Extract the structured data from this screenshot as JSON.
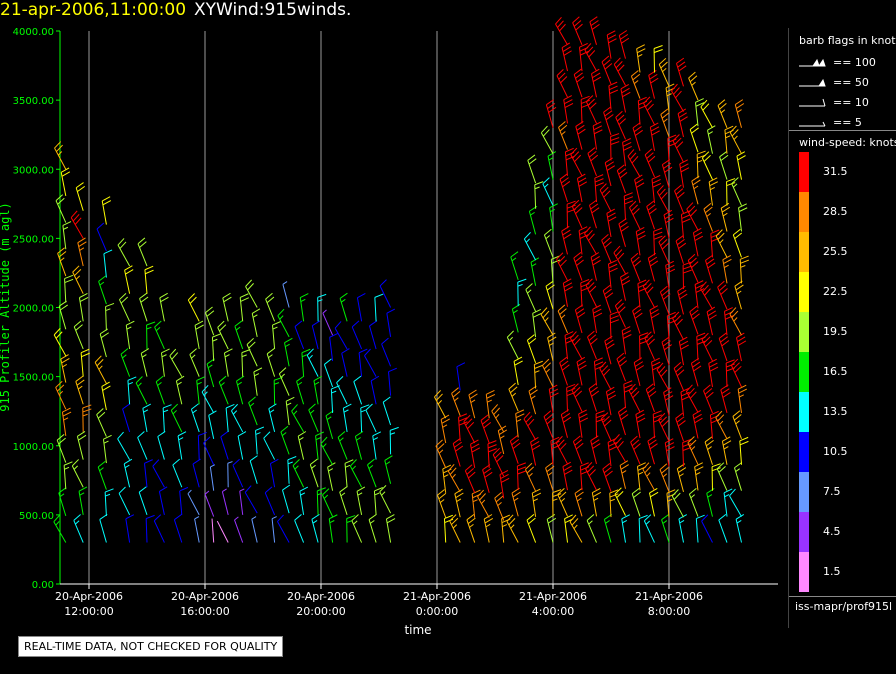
{
  "header": {
    "timestamp": "21-apr-2006,11:00:00",
    "product": "XYWind:915winds."
  },
  "legend": {
    "barb_title": "barb flags in knots",
    "barb_flags": [
      {
        "label": "== 100",
        "knots": 100
      },
      {
        "label": "== 50",
        "knots": 50
      },
      {
        "label": "== 10",
        "knots": 10
      },
      {
        "label": "== 5",
        "knots": 5
      }
    ],
    "speed_title": "wind-speed: knots",
    "speed_scale": [
      {
        "label": "31.5",
        "color": "#ff0000"
      },
      {
        "label": "28.5",
        "color": "#ff8800"
      },
      {
        "label": "25.5",
        "color": "#ffbb00"
      },
      {
        "label": "22.5",
        "color": "#ffff00"
      },
      {
        "label": "19.5",
        "color": "#aaff33"
      },
      {
        "label": "16.5",
        "color": "#00ee00"
      },
      {
        "label": "13.5",
        "color": "#00ffff"
      },
      {
        "label": "10.5",
        "color": "#0000ff"
      },
      {
        "label": "7.5",
        "color": "#6699ff"
      },
      {
        "label": "4.5",
        "color": "#9933ff"
      },
      {
        "label": "1.5",
        "color": "#ff88ff"
      }
    ]
  },
  "source": "iss-mapr/prof915l",
  "notice": "REAL-TIME DATA, NOT CHECKED FOR QUALITY",
  "chart_data": {
    "type": "wind-barb time-height",
    "ylabel": "915 Profiler Altitude (m agl)",
    "xlabel": "time",
    "ylim": [
      0,
      4000
    ],
    "yticks": [
      "0.00",
      "500.00",
      "1000.00",
      "1500.00",
      "2000.00",
      "2500.00",
      "3000.00",
      "3500.00",
      "4000.00"
    ],
    "xlim": [
      "20-Apr-2006 11:00",
      "21-Apr-2006 11:00"
    ],
    "xticks": [
      {
        "date": "20-Apr-2006",
        "time": "12:00:00",
        "hour": 1
      },
      {
        "date": "20-Apr-2006",
        "time": "16:00:00",
        "hour": 5
      },
      {
        "date": "20-Apr-2006",
        "time": "20:00:00",
        "hour": 9
      },
      {
        "date": "21-Apr-2006",
        "time": "0:00:00",
        "hour": 13
      },
      {
        "date": "21-Apr-2006",
        "time": "4:00:00",
        "hour": 17
      },
      {
        "date": "21-Apr-2006",
        "time": "8:00:00",
        "hour": 21
      }
    ],
    "grid": "vertical lines at x ticks",
    "profiles": [
      {
        "hour": 0.2,
        "top": 3000,
        "speeds": [
          16,
          16,
          18,
          20,
          28,
          28,
          26,
          22,
          20,
          20,
          24,
          18,
          20,
          22,
          24
        ]
      },
      {
        "hour": 0.8,
        "top": 2700,
        "speeds": [
          14,
          16,
          18,
          20,
          28,
          26,
          22,
          20,
          20,
          24,
          28,
          31,
          22
        ]
      },
      {
        "hour": 1.6,
        "top": 2600,
        "speeds": [
          12,
          14,
          16,
          18,
          20,
          22,
          24,
          20,
          18,
          16,
          12,
          10,
          22
        ]
      },
      {
        "hour": 2.4,
        "top": 2300,
        "speeds": [
          10,
          12,
          14,
          12,
          10,
          14,
          16,
          18,
          20,
          22,
          20
        ]
      },
      {
        "hour": 3.0,
        "top": 2300,
        "speeds": [
          10,
          12,
          10,
          12,
          14,
          16,
          18,
          16,
          20,
          22,
          20
        ]
      },
      {
        "hour": 3.6,
        "top": 1900,
        "speeds": [
          10,
          10,
          10,
          12,
          14,
          16,
          18,
          16,
          20
        ]
      },
      {
        "hour": 4.2,
        "top": 1500,
        "speeds": [
          10,
          10,
          12,
          14,
          16,
          18,
          20
        ]
      },
      {
        "hour": 4.8,
        "top": 1900,
        "speeds": [
          6,
          8,
          10,
          10,
          14,
          16,
          18,
          20,
          22
        ]
      },
      {
        "hour": 5.3,
        "top": 1800,
        "speeds": [
          2,
          4,
          6,
          10,
          12,
          14,
          16,
          18,
          20
        ]
      },
      {
        "hour": 5.8,
        "top": 1900,
        "speeds": [
          2,
          4,
          8,
          10,
          12,
          16,
          18,
          20,
          20
        ]
      },
      {
        "hour": 6.3,
        "top": 1900,
        "speeds": [
          4,
          4,
          10,
          12,
          14,
          16,
          18,
          16,
          20
        ]
      },
      {
        "hour": 6.8,
        "top": 2000,
        "speeds": [
          8,
          10,
          12,
          14,
          16,
          18,
          20,
          18,
          20
        ]
      },
      {
        "hour": 7.4,
        "top": 1900,
        "speeds": [
          8,
          10,
          10,
          12,
          14,
          16,
          18,
          18,
          19
        ]
      },
      {
        "hour": 7.9,
        "top": 2000,
        "speeds": [
          10,
          12,
          14,
          16,
          18,
          18,
          16,
          16,
          6
        ]
      },
      {
        "hour": 8.4,
        "top": 1900,
        "speeds": [
          12,
          14,
          16,
          18,
          16,
          16,
          16,
          10,
          16
        ]
      },
      {
        "hour": 8.9,
        "top": 1900,
        "speeds": [
          14,
          16,
          18,
          16,
          16,
          16,
          14,
          10,
          14
        ]
      },
      {
        "hour": 9.4,
        "top": 1800,
        "speeds": [
          16,
          16,
          18,
          16,
          16,
          14,
          12,
          10,
          4
        ]
      },
      {
        "hour": 9.9,
        "top": 1900,
        "speeds": [
          16,
          18,
          18,
          16,
          14,
          12,
          10,
          10,
          16
        ]
      },
      {
        "hour": 10.4,
        "top": 1900,
        "speeds": [
          18,
          18,
          16,
          16,
          14,
          12,
          10,
          10,
          10
        ]
      },
      {
        "hour": 10.9,
        "top": 1900,
        "speeds": [
          18,
          18,
          16,
          14,
          12,
          10,
          10,
          10,
          12
        ]
      },
      {
        "hour": 11.4,
        "top": 2000,
        "speeds": [
          20,
          18,
          16,
          14,
          12,
          10,
          10,
          10,
          10
        ]
      },
      {
        "hour": 13.3,
        "top": 1200,
        "speeds": [
          22,
          24,
          26,
          28,
          28,
          26
        ]
      },
      {
        "hour": 13.8,
        "top": 1400,
        "speeds": [
          24,
          26,
          28,
          30,
          31,
          28,
          10
        ]
      },
      {
        "hour": 14.3,
        "top": 1200,
        "speeds": [
          24,
          28,
          30,
          31,
          31,
          28
        ]
      },
      {
        "hour": 14.8,
        "top": 1200,
        "speeds": [
          26,
          28,
          31,
          31,
          31,
          28
        ]
      },
      {
        "hour": 15.3,
        "top": 1100,
        "speeds": [
          26,
          28,
          31,
          31,
          28,
          28
        ]
      },
      {
        "hour": 15.8,
        "top": 2200,
        "speeds": [
          26,
          28,
          31,
          31,
          28,
          26,
          22,
          18,
          16,
          14,
          16
        ]
      },
      {
        "hour": 16.4,
        "top": 2900,
        "speeds": [
          22,
          26,
          28,
          31,
          31,
          28,
          26,
          22,
          20,
          18,
          16,
          14,
          16,
          18,
          20
        ]
      },
      {
        "hour": 17.0,
        "top": 3300,
        "speeds": [
          20,
          24,
          28,
          31,
          31,
          31,
          28,
          26,
          24,
          22,
          20,
          18,
          16,
          14,
          16,
          20,
          31
        ]
      },
      {
        "hour": 17.5,
        "top": 3900,
        "speeds": [
          22,
          26,
          31,
          31,
          31,
          31,
          31,
          31,
          28,
          31,
          31,
          31,
          31,
          31,
          31,
          28,
          31,
          31,
          31,
          31
        ]
      },
      {
        "hour": 18.0,
        "top": 3900,
        "speeds": [
          24,
          28,
          31,
          31,
          31,
          31,
          31,
          31,
          31,
          31,
          31,
          31,
          31,
          31,
          31,
          31,
          31,
          31,
          31,
          31
        ]
      },
      {
        "hour": 18.5,
        "top": 3900,
        "speeds": [
          18,
          26,
          31,
          31,
          31,
          31,
          31,
          31,
          31,
          31,
          31,
          31,
          31,
          31,
          31,
          31,
          31,
          31,
          31,
          31
        ]
      },
      {
        "hour": 19.0,
        "top": 3800,
        "speeds": [
          16,
          24,
          31,
          31,
          31,
          31,
          31,
          31,
          31,
          31,
          31,
          31,
          31,
          31,
          31,
          31,
          31,
          31,
          31,
          31
        ]
      },
      {
        "hour": 19.5,
        "top": 3800,
        "speeds": [
          14,
          22,
          28,
          31,
          31,
          31,
          31,
          31,
          31,
          31,
          31,
          31,
          31,
          31,
          31,
          31,
          31,
          31,
          31
        ]
      },
      {
        "hour": 20.0,
        "top": 3700,
        "speeds": [
          12,
          20,
          26,
          31,
          31,
          31,
          31,
          31,
          31,
          31,
          31,
          31,
          31,
          31,
          31,
          31,
          31,
          28,
          26
        ]
      },
      {
        "hour": 20.5,
        "top": 3700,
        "speeds": [
          14,
          22,
          28,
          31,
          31,
          31,
          31,
          31,
          31,
          31,
          31,
          31,
          31,
          31,
          31,
          31,
          31,
          31,
          22
        ]
      },
      {
        "hour": 21.0,
        "top": 3600,
        "speeds": [
          16,
          24,
          28,
          31,
          31,
          31,
          31,
          31,
          31,
          31,
          31,
          31,
          31,
          31,
          31,
          31,
          28,
          26,
          24
        ]
      },
      {
        "hour": 21.5,
        "top": 3600,
        "speeds": [
          14,
          20,
          26,
          31,
          31,
          31,
          31,
          31,
          31,
          31,
          31,
          31,
          31,
          31,
          31,
          31,
          31,
          31,
          31
        ]
      },
      {
        "hour": 22.0,
        "top": 3500,
        "speeds": [
          12,
          18,
          24,
          28,
          31,
          31,
          31,
          31,
          31,
          31,
          31,
          31,
          31,
          28,
          26,
          22,
          20,
          24
        ]
      },
      {
        "hour": 22.5,
        "top": 3300,
        "speeds": [
          10,
          16,
          22,
          26,
          31,
          31,
          31,
          31,
          31,
          31,
          31,
          31,
          28,
          26,
          22,
          18,
          22
        ]
      },
      {
        "hour": 23.0,
        "top": 3300,
        "speeds": [
          12,
          14,
          20,
          24,
          28,
          31,
          31,
          31,
          31,
          31,
          28,
          26,
          24,
          22,
          20,
          24,
          26
        ]
      },
      {
        "hour": 23.5,
        "top": 3300,
        "speeds": [
          14,
          12,
          18,
          22,
          26,
          28,
          31,
          31,
          28,
          26,
          24,
          22,
          20,
          18,
          22,
          26,
          28
        ]
      }
    ]
  }
}
